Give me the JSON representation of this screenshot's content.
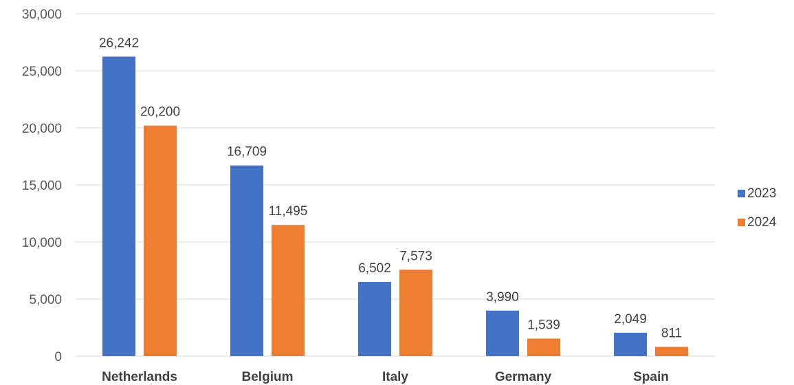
{
  "chart_data": {
    "type": "bar",
    "categories": [
      "Netherlands",
      "Belgium",
      "Italy",
      "Germany",
      "Spain"
    ],
    "series": [
      {
        "name": "2023",
        "values": [
          26242,
          16709,
          6502,
          3990,
          2049
        ],
        "color": "#4472C4"
      },
      {
        "name": "2024",
        "values": [
          20200,
          11495,
          7573,
          1539,
          811
        ],
        "color": "#ED7D31"
      }
    ],
    "data_labels": [
      [
        "26,242",
        "16,709",
        "6,502",
        "3,990",
        "2,049"
      ],
      [
        "20,200",
        "11,495",
        "7,573",
        "1,539",
        "811"
      ]
    ],
    "ylim": [
      0,
      30000
    ],
    "yticks": [
      0,
      5000,
      10000,
      15000,
      20000,
      25000,
      30000
    ],
    "ytick_labels": [
      "0",
      "5,000",
      "10,000",
      "15,000",
      "20,000",
      "25,000",
      "30,000"
    ],
    "title": "",
    "xlabel": "",
    "ylabel": "",
    "grid": true,
    "legend": "right",
    "colors": {
      "gridline": "#D9D9D9"
    }
  }
}
